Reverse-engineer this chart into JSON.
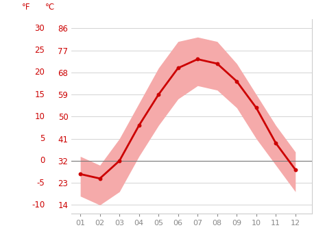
{
  "months": [
    1,
    2,
    3,
    4,
    5,
    6,
    7,
    8,
    9,
    10,
    11,
    12
  ],
  "month_labels": [
    "01",
    "02",
    "03",
    "04",
    "05",
    "06",
    "07",
    "08",
    "09",
    "10",
    "11",
    "12"
  ],
  "mean_temp_c": [
    -3,
    -4,
    0,
    8,
    15,
    21,
    23,
    22,
    18,
    12,
    4,
    -2
  ],
  "upper_band_c": [
    1,
    -1,
    5,
    13,
    21,
    27,
    28,
    27,
    22,
    15,
    8,
    2
  ],
  "lower_band_c": [
    -8,
    -10,
    -7,
    1,
    8,
    14,
    17,
    16,
    12,
    5,
    -1,
    -7
  ],
  "line_color": "#cc0000",
  "band_color": "#f5aaaa",
  "zero_line_color": "#777777",
  "grid_color": "#cccccc",
  "ticks_c": [
    -10,
    -5,
    0,
    5,
    10,
    15,
    20,
    25,
    30
  ],
  "ticks_f": [
    14,
    23,
    32,
    41,
    50,
    59,
    68,
    77,
    86
  ],
  "ylim_c": [
    -12,
    32
  ],
  "xlim": [
    0.55,
    12.85
  ],
  "bg_color": "#ffffff",
  "label_f": "°F",
  "label_c": "°C",
  "tick_color_red": "#cc0000",
  "tick_color_gray": "#888888",
  "tick_fontsize": 8.5,
  "xtick_fontsize": 8
}
